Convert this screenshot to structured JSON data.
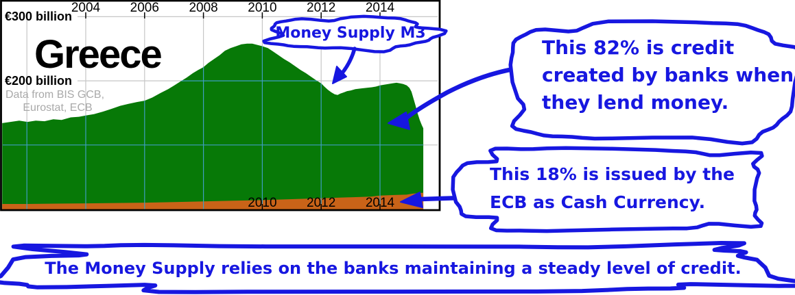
{
  "chart": {
    "title": "Greece",
    "y_axis_label_top": "€300 billion",
    "y_axis_label_mid": "€200 billion",
    "source": {
      "line1": "Data from BIS  GCB,",
      "line2": "Eurostat, ECB"
    },
    "top_axis_years": [
      "2004",
      "2006",
      "2008",
      "2010",
      "2012",
      "2014"
    ],
    "bottom_axis_years": [
      "2010",
      "2012",
      "2014"
    ]
  },
  "annotations": {
    "m3_bubble": "Money Supply M3",
    "credit_bubble_lines": [
      "This 82% is credit",
      "created by banks when",
      "they lend money."
    ],
    "cash_bubble_lines": [
      "This 18% is issued by the",
      "ECB as Cash Currency."
    ],
    "bottom_banner": "The Money Supply relies on the banks maintaining a steady level of credit."
  },
  "colors": {
    "money_supply_green": "#077907",
    "cash_orange": "#c96318",
    "annotation_blue": "#1717e0",
    "grid_gray": "#c6c6c6",
    "grid_teal": "#3f9ec2",
    "source_gray": "#a9a9a9",
    "axis_black": "#000000"
  },
  "chart_data": {
    "type": "area",
    "title": "Greece",
    "unit": "EUR billion",
    "x_range": [
      2001.15,
      2015.5
    ],
    "y_range": [
      0,
      330
    ],
    "y_gridlines": [
      100,
      200,
      300
    ],
    "x_gridline_years": [
      2002,
      2004,
      2006,
      2008,
      2010,
      2012,
      2014
    ],
    "x_ticks_top": [
      2004,
      2006,
      2008,
      2010,
      2012,
      2014
    ],
    "x_ticks_bottom": [
      2010,
      2012,
      2014
    ],
    "credit_share_pct": 82,
    "cash_share_pct": 18,
    "series": [
      {
        "name": "Money Supply M3 (total)",
        "color_key": "money_supply_green",
        "points": [
          [
            2001.16,
            134
          ],
          [
            2001.44,
            136
          ],
          [
            2001.74,
            138
          ],
          [
            2002.02,
            136
          ],
          [
            2002.3,
            138
          ],
          [
            2002.6,
            137
          ],
          [
            2002.9,
            140
          ],
          [
            2003.18,
            139
          ],
          [
            2003.49,
            143
          ],
          [
            2003.77,
            144
          ],
          [
            2004.0,
            146
          ],
          [
            2004.28,
            148
          ],
          [
            2004.58,
            152
          ],
          [
            2004.86,
            156
          ],
          [
            2005.17,
            161
          ],
          [
            2005.45,
            164
          ],
          [
            2005.75,
            167
          ],
          [
            2006.0,
            169
          ],
          [
            2006.26,
            174
          ],
          [
            2006.54,
            181
          ],
          [
            2006.8,
            187
          ],
          [
            2007.01,
            193
          ],
          [
            2007.22,
            199
          ],
          [
            2007.43,
            205
          ],
          [
            2007.64,
            212
          ],
          [
            2007.82,
            217
          ],
          [
            2007.99,
            221
          ],
          [
            2008.17,
            228
          ],
          [
            2008.36,
            234
          ],
          [
            2008.55,
            240
          ],
          [
            2008.73,
            247
          ],
          [
            2008.92,
            251
          ],
          [
            2009.11,
            254
          ],
          [
            2009.29,
            257
          ],
          [
            2009.48,
            258
          ],
          [
            2009.66,
            258
          ],
          [
            2009.83,
            256
          ],
          [
            2010.0,
            254
          ],
          [
            2010.19,
            251
          ],
          [
            2010.36,
            246
          ],
          [
            2010.55,
            240
          ],
          [
            2010.74,
            234
          ],
          [
            2010.92,
            229
          ],
          [
            2011.11,
            223
          ],
          [
            2011.3,
            217
          ],
          [
            2011.48,
            212
          ],
          [
            2011.67,
            206
          ],
          [
            2011.83,
            201
          ],
          [
            2012.0,
            196
          ],
          [
            2012.11,
            191
          ],
          [
            2012.23,
            186
          ],
          [
            2012.35,
            182
          ],
          [
            2012.46,
            179
          ],
          [
            2012.56,
            178
          ],
          [
            2012.65,
            180
          ],
          [
            2012.77,
            182
          ],
          [
            2012.88,
            184
          ],
          [
            2013.0,
            185
          ],
          [
            2013.16,
            187
          ],
          [
            2013.35,
            188
          ],
          [
            2013.53,
            189
          ],
          [
            2013.72,
            190
          ],
          [
            2013.86,
            191
          ],
          [
            2014.0,
            193
          ],
          [
            2014.14,
            194
          ],
          [
            2014.28,
            195
          ],
          [
            2014.42,
            196
          ],
          [
            2014.56,
            197
          ],
          [
            2014.68,
            196
          ],
          [
            2014.79,
            195
          ],
          [
            2014.91,
            193
          ],
          [
            2015.0,
            189
          ],
          [
            2015.07,
            183
          ],
          [
            2015.14,
            172
          ],
          [
            2015.21,
            161
          ],
          [
            2015.28,
            149
          ],
          [
            2015.35,
            139
          ],
          [
            2015.42,
            131
          ],
          [
            2015.47,
            126
          ]
        ]
      },
      {
        "name": "Cash Currency issued by ECB",
        "color_key": "cash_orange",
        "points": [
          [
            2001.16,
            8
          ],
          [
            2002,
            8
          ],
          [
            2003,
            8.5
          ],
          [
            2004,
            9
          ],
          [
            2005,
            9.5
          ],
          [
            2006,
            10
          ],
          [
            2007,
            11
          ],
          [
            2008,
            12
          ],
          [
            2009,
            13
          ],
          [
            2010,
            14
          ],
          [
            2011,
            15.5
          ],
          [
            2012,
            17
          ],
          [
            2013,
            18.5
          ],
          [
            2013.7,
            19.5
          ],
          [
            2014,
            21
          ],
          [
            2014.5,
            22
          ],
          [
            2014.9,
            22.5
          ],
          [
            2015.1,
            24
          ],
          [
            2015.3,
            25
          ],
          [
            2015.47,
            25.5
          ]
        ]
      }
    ]
  }
}
